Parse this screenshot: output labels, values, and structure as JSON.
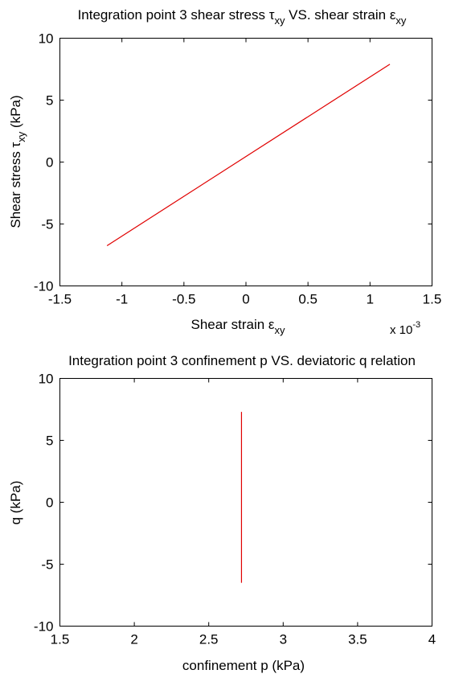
{
  "chart_data": [
    {
      "type": "line",
      "title_main": "Integration point 3 shear stress τ",
      "title_sub1": "xy",
      "title_mid": " VS. shear strain ε",
      "title_sub2": "xy",
      "xlabel_main": "Shear strain ε",
      "xlabel_sub": "xy",
      "ylabel_main": "Shear stress τ",
      "ylabel_sub": "xy",
      "ylabel_tail": " (kPa)",
      "x_multiplier_base": "x 10",
      "x_multiplier_exp": "-3",
      "xlim": [
        -1.5,
        1.5
      ],
      "ylim": [
        -10,
        10
      ],
      "xticks": [
        -1.5,
        -1,
        -0.5,
        0,
        0.5,
        1,
        1.5
      ],
      "xtick_labels": [
        "-1.5",
        "-1",
        "-0.5",
        "0",
        "0.5",
        "1",
        "1.5"
      ],
      "yticks": [
        -10,
        -5,
        0,
        5,
        10
      ],
      "ytick_labels": [
        "-10",
        "-5",
        "0",
        "5",
        "10"
      ],
      "grid": false,
      "series": [
        {
          "color": "#e00000",
          "x": [
            -1.12,
            1.16
          ],
          "y": [
            -6.75,
            7.9
          ]
        }
      ]
    },
    {
      "type": "line",
      "title": "Integration point 3 confinement p VS. deviatoric q relation",
      "xlabel": "confinement p (kPa)",
      "ylabel": "q (kPa)",
      "xlim": [
        1.5,
        4
      ],
      "ylim": [
        -10,
        10
      ],
      "xticks": [
        1.5,
        2,
        2.5,
        3,
        3.5,
        4
      ],
      "xtick_labels": [
        "1.5",
        "2",
        "2.5",
        "3",
        "3.5",
        "4"
      ],
      "yticks": [
        -10,
        -5,
        0,
        5,
        10
      ],
      "ytick_labels": [
        "-10",
        "-5",
        "0",
        "5",
        "10"
      ],
      "grid": false,
      "series": [
        {
          "color": "#e00000",
          "x": [
            2.72,
            2.72
          ],
          "y": [
            -6.5,
            7.3
          ]
        }
      ]
    }
  ]
}
